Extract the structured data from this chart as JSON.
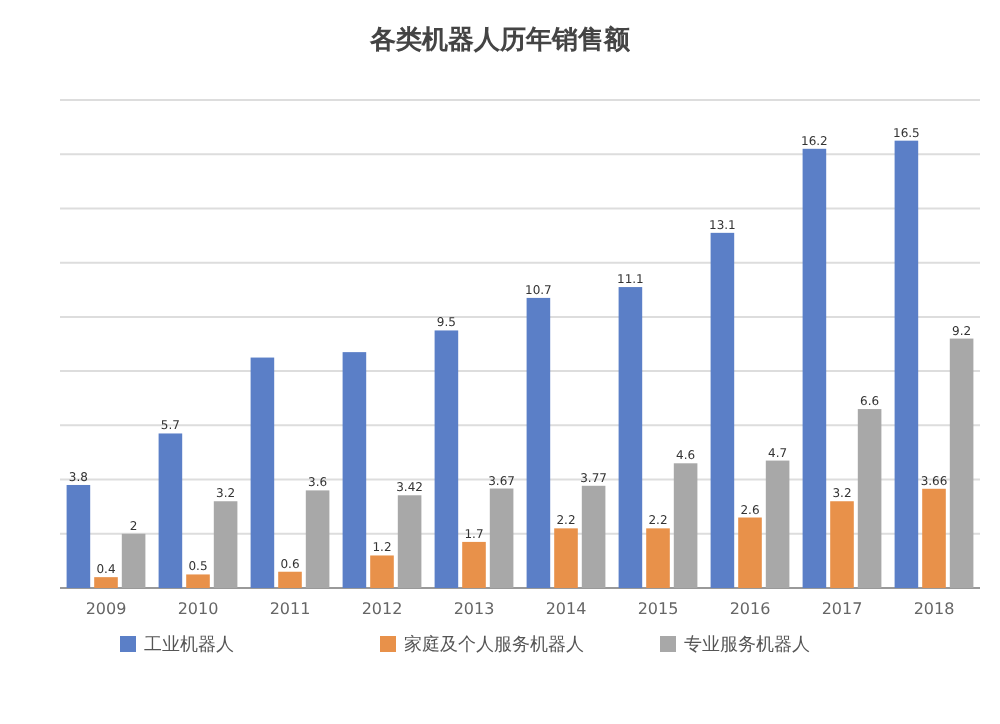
{
  "chart_data": {
    "type": "bar",
    "title": "各类机器人历年销售额",
    "categories": [
      "2009",
      "2010",
      "2011",
      "2012",
      "2013",
      "2014",
      "2015",
      "2016",
      "2017",
      "2018"
    ],
    "series": [
      {
        "name": "工业机器人",
        "color": "#5b7fc7",
        "values": [
          3.8,
          5.7,
          8.5,
          8.7,
          9.5,
          10.7,
          11.1,
          13.1,
          16.2,
          16.5
        ],
        "value_labels": [
          "3.8",
          "5.7",
          null,
          null,
          "9.5",
          "10.7",
          "11.1",
          "13.1",
          "16.2",
          "16.5"
        ]
      },
      {
        "name": "家庭及个人服务机器人",
        "color": "#e8914a",
        "values": [
          0.4,
          0.5,
          0.6,
          1.2,
          1.7,
          2.2,
          2.2,
          2.6,
          3.2,
          3.66
        ],
        "value_labels": [
          "0.4",
          "0.5",
          "0.6",
          "1.2",
          "1.7",
          "2.2",
          "2.2",
          "2.6",
          "3.2",
          "3.66"
        ]
      },
      {
        "name": "专业服务机器人",
        "color": "#a8a8a8",
        "values": [
          2,
          3.2,
          3.6,
          3.42,
          3.67,
          3.77,
          4.6,
          4.7,
          6.6,
          9.2
        ],
        "value_labels": [
          "2",
          "3.2",
          "3.6",
          "3.42",
          "3.67",
          "3.77",
          "4.6",
          "4.7",
          "6.6",
          "9.2"
        ]
      }
    ],
    "ylim": [
      0,
      18
    ],
    "yticks": [
      {
        "value": 0,
        "label": null
      },
      {
        "value": 2,
        "label": null
      },
      {
        "value": 4,
        "label": null
      },
      {
        "value": 6,
        "label": null
      },
      {
        "value": 8,
        "label": null
      },
      {
        "value": 10,
        "label": null
      },
      {
        "value": 12,
        "label": null
      },
      {
        "value": 14,
        "label": null
      },
      {
        "value": 16,
        "label": null
      },
      {
        "value": 18,
        "label": null
      }
    ],
    "grid": "y",
    "tick_labels": "x",
    "legend": "bottom"
  }
}
